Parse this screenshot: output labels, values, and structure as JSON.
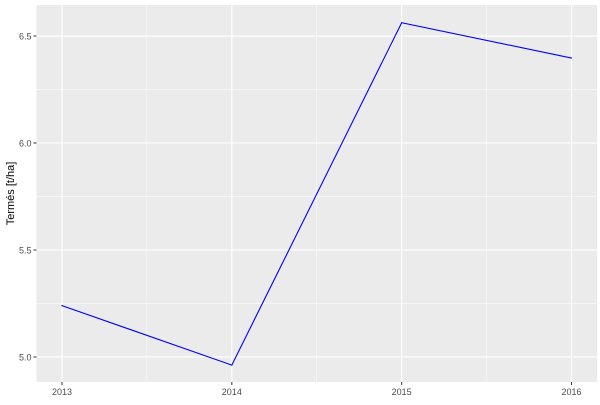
{
  "chart_data": {
    "type": "line",
    "title": "",
    "xlabel": "",
    "ylabel": "Termés [t/ha]",
    "x": [
      2013,
      2014,
      2015,
      2016
    ],
    "series": [
      {
        "values": [
          5.24,
          4.962,
          6.562,
          6.397
        ],
        "color": "#0000ff"
      }
    ],
    "xticks": [
      "2013",
      "2014",
      "2015",
      "2016"
    ],
    "yticks": [
      "5.0",
      "5.5",
      "6.0",
      "6.5"
    ],
    "xlim": [
      2012.85,
      2016.15
    ],
    "ylim": [
      4.883,
      6.645
    ],
    "grid": true,
    "panel_background": "#ebebeb",
    "grid_color": "#ffffff"
  }
}
